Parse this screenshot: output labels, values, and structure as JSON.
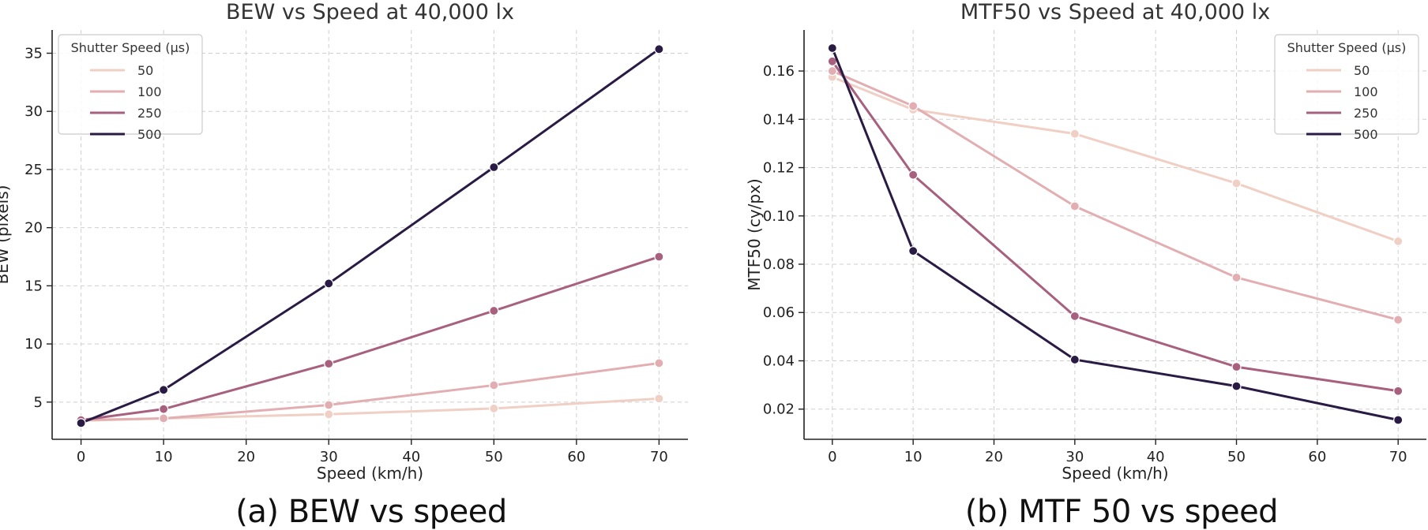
{
  "chart_data": [
    {
      "type": "line",
      "title": "BEW vs Speed at 40,000 lx",
      "xlabel": "Speed (km/h)",
      "ylabel": "BEW (pixels)",
      "xlim": [
        -3.5,
        73.5
      ],
      "ylim": [
        1.8,
        37.0
      ],
      "xticks": [
        0,
        10,
        20,
        30,
        40,
        50,
        60,
        70
      ],
      "yticks": [
        5,
        10,
        15,
        20,
        25,
        30,
        35
      ],
      "grid": true,
      "legend_title": "Shutter Speed (μs)",
      "legend_position": "top-left",
      "x": [
        0,
        10,
        30,
        50,
        70
      ],
      "series": [
        {
          "name": "50",
          "color": "#f0cfc4",
          "values": [
            3.4,
            3.6,
            3.95,
            4.45,
            5.3
          ]
        },
        {
          "name": "100",
          "color": "#e2aeb2",
          "values": [
            3.45,
            3.6,
            4.75,
            6.45,
            8.35
          ]
        },
        {
          "name": "250",
          "color": "#a8607f",
          "values": [
            3.45,
            4.4,
            8.3,
            12.85,
            17.5
          ]
        },
        {
          "name": "500",
          "color": "#2a1b45",
          "values": [
            3.2,
            6.05,
            15.2,
            25.2,
            35.35
          ]
        }
      ]
    },
    {
      "type": "line",
      "title": "MTF50 vs Speed at 40,000 lx",
      "xlabel": "Speed (km/h)",
      "ylabel": "MTF50 (cy/px)",
      "xlim": [
        -3.5,
        73.5
      ],
      "ylim": [
        0.0075,
        0.177
      ],
      "xticks": [
        0,
        10,
        20,
        30,
        40,
        50,
        60,
        70
      ],
      "yticks": [
        0.02,
        0.04,
        0.06,
        0.08,
        0.1,
        0.12,
        0.14,
        0.16
      ],
      "ytick_labels": [
        "0.02",
        "0.04",
        "0.06",
        "0.08",
        "0.10",
        "0.12",
        "0.14",
        "0.16"
      ],
      "grid": true,
      "legend_title": "Shutter Speed (μs)",
      "legend_position": "top-right",
      "x": [
        0,
        10,
        30,
        50,
        70
      ],
      "series": [
        {
          "name": "50",
          "color": "#f0cfc4",
          "values": [
            0.1575,
            0.144,
            0.134,
            0.1135,
            0.0895
          ]
        },
        {
          "name": "100",
          "color": "#e2aeb2",
          "values": [
            0.16,
            0.1455,
            0.104,
            0.0745,
            0.057
          ]
        },
        {
          "name": "250",
          "color": "#a8607f",
          "values": [
            0.164,
            0.117,
            0.0585,
            0.0375,
            0.0275
          ]
        },
        {
          "name": "500",
          "color": "#2a1b45",
          "values": [
            0.1695,
            0.0855,
            0.0405,
            0.0295,
            0.0155
          ]
        }
      ]
    }
  ],
  "captions": {
    "a": "(a) BEW vs speed",
    "b": "(b) MTF 50 vs speed"
  }
}
